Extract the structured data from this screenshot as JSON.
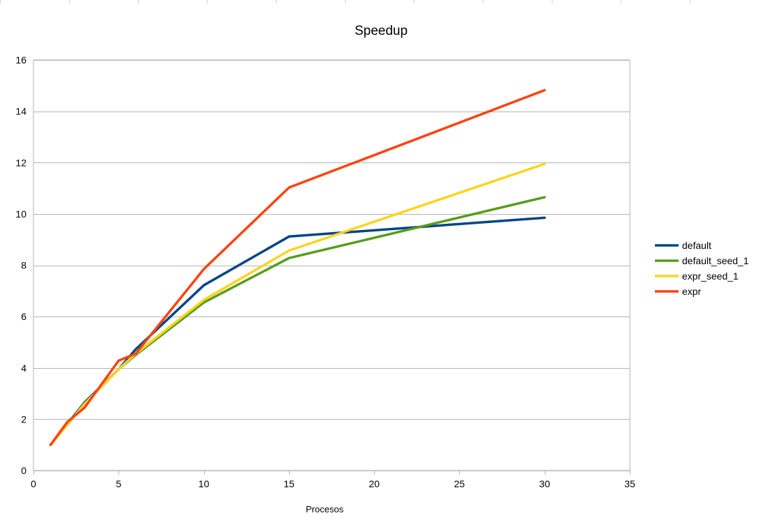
{
  "chart_data": {
    "type": "line",
    "title": "Speedup",
    "xlabel": "Procesos",
    "ylabel": "",
    "xlim": [
      0,
      35
    ],
    "ylim": [
      0,
      16
    ],
    "x_ticks": [
      0,
      5,
      10,
      15,
      20,
      25,
      30,
      35
    ],
    "y_ticks": [
      0,
      2,
      4,
      6,
      8,
      10,
      12,
      14,
      16
    ],
    "grid": "horizontal",
    "legend_position": "right",
    "series": [
      {
        "name": "default",
        "color": "#004586",
        "points": [
          [
            1,
            1.0
          ],
          [
            3,
            2.65
          ],
          [
            5,
            3.95
          ],
          [
            6,
            4.72
          ],
          [
            10,
            7.22
          ],
          [
            15,
            9.12
          ],
          [
            30,
            9.85
          ]
        ]
      },
      {
        "name": "default_seed_1",
        "color": "#579d1c",
        "points": [
          [
            1,
            1.0
          ],
          [
            3,
            2.6
          ],
          [
            5,
            3.95
          ],
          [
            6,
            4.5
          ],
          [
            10,
            6.55
          ],
          [
            15,
            8.28
          ],
          [
            30,
            10.65
          ]
        ]
      },
      {
        "name": "expr_seed_1",
        "color": "#ffd320",
        "points": [
          [
            1,
            1.0
          ],
          [
            3,
            2.6
          ],
          [
            5,
            3.95
          ],
          [
            6,
            4.55
          ],
          [
            10,
            6.65
          ],
          [
            15,
            8.57
          ],
          [
            30,
            11.95
          ]
        ]
      },
      {
        "name": "expr",
        "color": "#ff420e",
        "points": [
          [
            1,
            1.0
          ],
          [
            2,
            1.9
          ],
          [
            3,
            2.45
          ],
          [
            5,
            4.28
          ],
          [
            6,
            4.55
          ],
          [
            10,
            7.85
          ],
          [
            15,
            11.03
          ],
          [
            30,
            14.82
          ]
        ]
      }
    ]
  }
}
